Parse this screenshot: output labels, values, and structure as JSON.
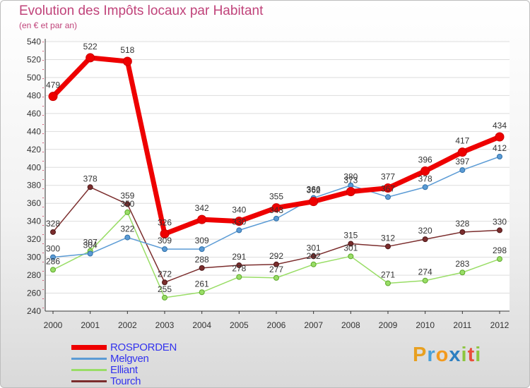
{
  "header": {
    "title": "Evolution des Impôts locaux par Habitant",
    "subtitle": "(en € et par an)"
  },
  "logo": {
    "parts": [
      "P",
      "r",
      "o",
      "x",
      "i",
      "t",
      "i"
    ]
  },
  "chart_data": {
    "type": "line",
    "title": "Evolution des Impôts locaux par Habitant",
    "subtitle": "(en € et par an)",
    "xlabel": "",
    "ylabel": "",
    "x": [
      "2000",
      "2001",
      "2002",
      "2003",
      "2004",
      "2005",
      "2006",
      "2007",
      "2008",
      "2009",
      "2010",
      "2011",
      "2012"
    ],
    "ylim": [
      240,
      540
    ],
    "yticks": [
      240,
      260,
      280,
      300,
      320,
      340,
      360,
      380,
      400,
      420,
      440,
      460,
      480,
      500,
      520,
      540
    ],
    "grid": "horizontal",
    "legend_position": "bottom-left",
    "series": [
      {
        "name": "ROSPORDEN",
        "color": "#ee0000",
        "values": [
          479,
          522,
          518,
          326,
          342,
          340,
          355,
          362,
          373,
          377,
          396,
          417,
          434
        ]
      },
      {
        "name": "Melgven",
        "color": "#5b9bd5",
        "values": [
          300,
          304,
          322,
          309,
          309,
          330,
          343,
          366,
          380,
          367,
          378,
          397,
          412
        ]
      },
      {
        "name": "Elliant",
        "color": "#99dd66",
        "values": [
          286,
          307,
          350,
          255,
          261,
          278,
          277,
          292,
          301,
          271,
          274,
          283,
          298
        ]
      },
      {
        "name": "Tourch",
        "color": "#7b2d2d",
        "values": [
          328,
          378,
          359,
          272,
          288,
          291,
          292,
          301,
          315,
          312,
          320,
          328,
          330
        ]
      }
    ]
  }
}
